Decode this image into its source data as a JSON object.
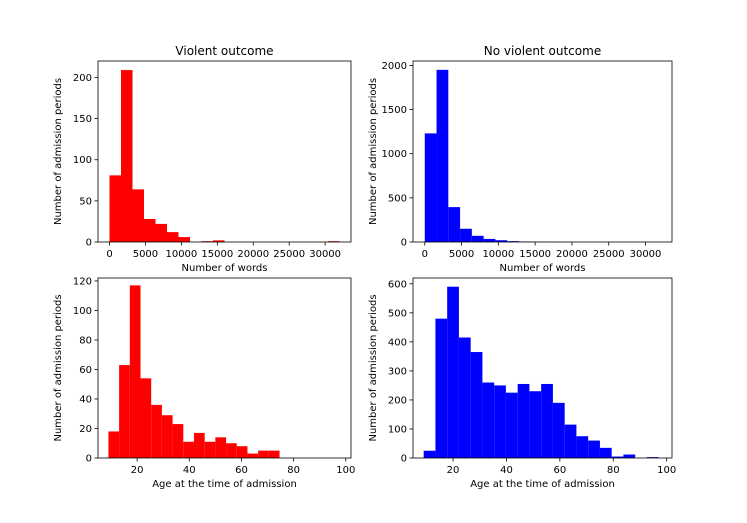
{
  "chart_data": [
    {
      "type": "bar",
      "title": "Violent outcome",
      "xlabel": "Number of words",
      "ylabel": "Number of admission periods",
      "color": "#ff0000",
      "xlim": [
        -1600,
        33600
      ],
      "ylim": [
        0,
        220
      ],
      "xticks": [
        0,
        5000,
        10000,
        15000,
        20000,
        25000,
        30000
      ],
      "yticks": [
        0,
        50,
        100,
        150,
        200
      ],
      "bin_width": 1600,
      "bin_edges": [
        0,
        1600,
        3200,
        4800,
        6400,
        8000,
        9600,
        11200,
        12800,
        14400,
        16000,
        17600,
        19200,
        20800,
        22400,
        24000,
        25600,
        27200,
        28800,
        30400,
        32000
      ],
      "values": [
        81,
        209,
        64,
        28,
        22,
        12,
        6,
        0,
        1,
        2,
        0,
        0,
        0,
        0,
        0,
        0,
        0,
        0,
        0,
        1
      ]
    },
    {
      "type": "bar",
      "title": "No violent outcome",
      "xlabel": "Number of words",
      "ylabel": "Number of admission periods",
      "color": "#0000ff",
      "xlim": [
        -1600,
        33600
      ],
      "ylim": [
        0,
        2050
      ],
      "xticks": [
        0,
        5000,
        10000,
        15000,
        20000,
        25000,
        30000
      ],
      "yticks": [
        0,
        500,
        1000,
        1500,
        2000
      ],
      "bin_width": 1600,
      "bin_edges": [
        0,
        1600,
        3200,
        4800,
        6400,
        8000,
        9600,
        11200,
        12800,
        14400,
        16000,
        17600,
        19200,
        20800,
        22400,
        24000,
        25600,
        27200,
        28800,
        30400,
        32000
      ],
      "values": [
        1230,
        1950,
        395,
        150,
        70,
        35,
        20,
        10,
        5,
        3,
        2,
        1,
        1,
        0,
        0,
        0,
        0,
        0,
        0,
        0
      ]
    },
    {
      "type": "bar",
      "title": "",
      "xlabel": "Age at the time of admission",
      "ylabel": "Number of admission periods",
      "color": "#ff0000",
      "xlim": [
        5,
        102
      ],
      "ylim": [
        0,
        122
      ],
      "xticks": [
        20,
        40,
        60,
        80,
        100
      ],
      "yticks": [
        0,
        20,
        40,
        60,
        80,
        100,
        120
      ],
      "bin_width": 4.1,
      "bin_edges": [
        9,
        13.1,
        17.2,
        21.3,
        25.4,
        29.5,
        33.6,
        37.7,
        41.8,
        45.9,
        50,
        54.1,
        58.2,
        62.3,
        66.4,
        70.5,
        74.6,
        78.7,
        82.8,
        86.9,
        91,
        95.1
      ],
      "values": [
        18,
        63,
        117,
        54,
        36,
        29,
        23,
        11,
        17,
        11,
        14,
        10,
        8,
        3,
        5,
        5,
        0,
        0,
        0,
        0,
        0
      ]
    },
    {
      "type": "bar",
      "title": "",
      "xlabel": "Age at the time of admission",
      "ylabel": "Number of admission periods",
      "color": "#0000ff",
      "xlim": [
        5,
        102
      ],
      "ylim": [
        0,
        620
      ],
      "xticks": [
        20,
        40,
        60,
        80,
        100
      ],
      "yticks": [
        0,
        100,
        200,
        300,
        400,
        500,
        600
      ],
      "bin_width": 4.4,
      "bin_edges": [
        9,
        13.4,
        17.8,
        22.2,
        26.6,
        31,
        35.4,
        39.8,
        44.2,
        48.6,
        53,
        57.4,
        61.8,
        66.2,
        70.6,
        75,
        79.4,
        83.8,
        88.2,
        92.6,
        97
      ],
      "values": [
        25,
        480,
        590,
        415,
        365,
        260,
        250,
        225,
        255,
        230,
        255,
        190,
        115,
        75,
        60,
        35,
        5,
        12,
        0,
        3
      ]
    }
  ]
}
